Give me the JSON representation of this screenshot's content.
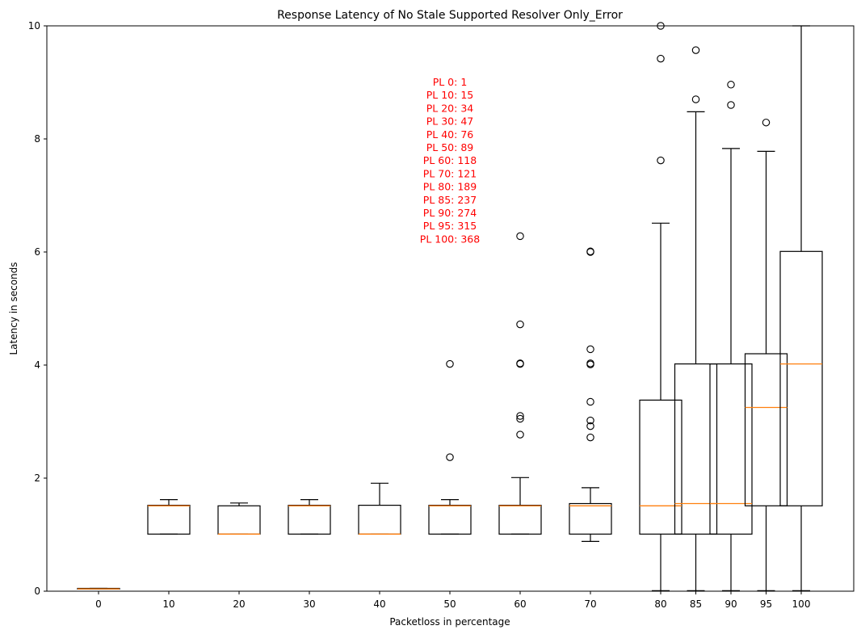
{
  "chart_data": {
    "type": "box",
    "title": "Response Latency of No Stale Supported Resolver Only_Error",
    "xlabel": "Packetloss in percentage",
    "ylabel": "Latency in seconds",
    "ylim": [
      0,
      10
    ],
    "yticks": [
      "0",
      "2",
      "4",
      "6",
      "8",
      "10"
    ],
    "grid": false,
    "categories": [
      "0",
      "10",
      "20",
      "30",
      "40",
      "50",
      "60",
      "70",
      "80",
      "85",
      "90",
      "95",
      "100"
    ],
    "boxes": [
      {
        "label": "0",
        "whislo": 0.04,
        "q1": 0.04,
        "med": 0.04,
        "q3": 0.05,
        "whishi": 0.05,
        "fliers": []
      },
      {
        "label": "10",
        "whislo": 1.01,
        "q1": 1.01,
        "med": 1.51,
        "q3": 1.52,
        "whishi": 1.62,
        "fliers": []
      },
      {
        "label": "20",
        "whislo": 1.01,
        "q1": 1.01,
        "med": 1.01,
        "q3": 1.51,
        "whishi": 1.56,
        "fliers": []
      },
      {
        "label": "30",
        "whislo": 1.01,
        "q1": 1.01,
        "med": 1.51,
        "q3": 1.52,
        "whishi": 1.62,
        "fliers": []
      },
      {
        "label": "40",
        "whislo": 1.01,
        "q1": 1.01,
        "med": 1.01,
        "q3": 1.52,
        "whishi": 1.91,
        "fliers": []
      },
      {
        "label": "50",
        "whislo": 1.01,
        "q1": 1.01,
        "med": 1.51,
        "q3": 1.52,
        "whishi": 1.62,
        "fliers": [
          2.37,
          4.02
        ]
      },
      {
        "label": "60",
        "whislo": 1.01,
        "q1": 1.01,
        "med": 1.51,
        "q3": 1.52,
        "whishi": 2.01,
        "fliers": [
          2.77,
          3.05,
          3.1,
          4.02,
          4.03,
          4.72,
          6.28
        ]
      },
      {
        "label": "70",
        "whislo": 0.88,
        "q1": 1.01,
        "med": 1.51,
        "q3": 1.55,
        "whishi": 1.83,
        "fliers": [
          2.72,
          2.92,
          3.02,
          3.35,
          4.01,
          4.03,
          4.28,
          6.0,
          6.01
        ]
      },
      {
        "label": "80",
        "whislo": 0.01,
        "q1": 1.01,
        "med": 1.51,
        "q3": 3.38,
        "whishi": 6.51,
        "fliers": [
          7.62,
          9.42,
          10.0
        ]
      },
      {
        "label": "85",
        "whislo": 0.01,
        "q1": 1.01,
        "med": 1.55,
        "q3": 4.02,
        "whishi": 8.48,
        "fliers": [
          8.7,
          9.57
        ]
      },
      {
        "label": "90",
        "whislo": 0.01,
        "q1": 1.01,
        "med": 1.55,
        "q3": 4.02,
        "whishi": 7.83,
        "fliers": [
          8.6,
          8.96
        ]
      },
      {
        "label": "95",
        "whislo": 0.01,
        "q1": 1.51,
        "med": 3.25,
        "q3": 4.2,
        "whishi": 7.78,
        "fliers": [
          8.29
        ]
      },
      {
        "label": "100",
        "whislo": 0.01,
        "q1": 1.51,
        "med": 4.02,
        "q3": 6.01,
        "whishi": 10.0,
        "fliers": []
      }
    ],
    "annotations": [
      "PL 0: 1",
      "PL 10: 15",
      "PL 20: 34",
      "PL 30: 47",
      "PL 40: 76",
      "PL 50: 89",
      "PL 60: 118",
      "PL 70: 121",
      "PL 80: 189",
      "PL 85: 237",
      "PL 90: 274",
      "PL 95: 315",
      "PL 100: 368"
    ],
    "colors": {
      "box": "#000000",
      "median": "#ff7f0e",
      "annotation": "#ff0000"
    }
  }
}
